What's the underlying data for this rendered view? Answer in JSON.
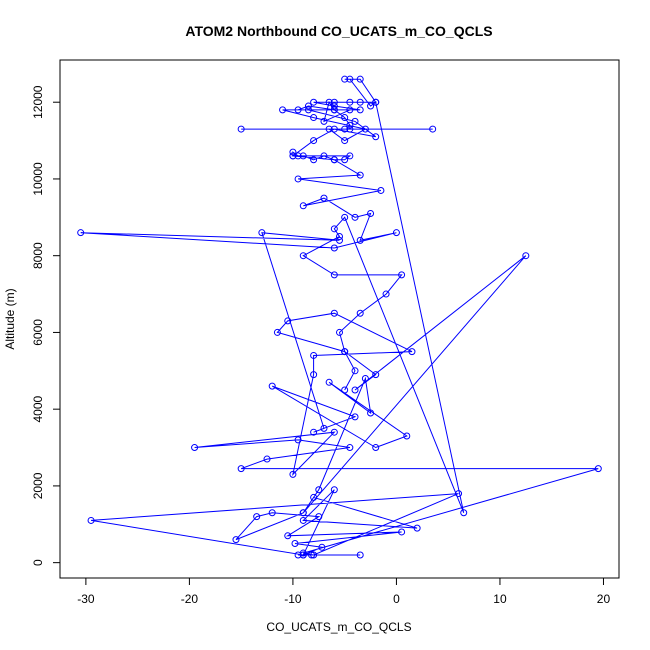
{
  "chart_data": {
    "type": "scatter",
    "title": "ATOM2 Northbound CO_UCATS_m_CO_QCLS",
    "xlabel": "CO_UCATS_m_CO_QCLS",
    "ylabel": "Altitude (m)",
    "xlim": [
      -32.5,
      21.5
    ],
    "ylim": [
      -400,
      13100
    ],
    "x_ticks": [
      -30,
      -20,
      -10,
      0,
      10,
      20
    ],
    "y_ticks": [
      0,
      2000,
      4000,
      6000,
      8000,
      10000,
      12000
    ],
    "grid": false,
    "legend": "none",
    "series": [
      {
        "color": "#0000ff",
        "marker": "open-circle",
        "connected": true,
        "x": [
          -9.5,
          -8.2,
          -3.5,
          -9.0,
          -7.2,
          -9.8,
          0.5,
          -10.5,
          -7.5,
          -12.0,
          -13.5,
          -15.5,
          -9.0,
          -8.0,
          2.0,
          -9.0,
          -6.0,
          -9.0,
          -29.5,
          6.0,
          -8.0,
          -9.0,
          19.5,
          -15.0,
          -12.5,
          -4.5,
          -9.5,
          -19.5,
          -6.0,
          -10.0,
          -8.0,
          -8.0,
          1.5,
          -6.0,
          -10.5,
          -11.5,
          -5.0,
          -2.0,
          -4.0,
          12.5,
          -9.0,
          -7.5,
          -3.0,
          -2.5,
          -6.5,
          1.0,
          -2.0,
          -12.0,
          -4.0,
          -8.0,
          -7.0,
          -13.0,
          -5.5,
          -30.5,
          -6.0,
          0.0,
          -3.5,
          -2.5,
          -4.0,
          -7.0,
          -9.0,
          -1.5,
          -9.5,
          -3.5,
          -6.0,
          -10.0,
          -10.0,
          -9.5,
          -9.0,
          -8.0,
          -7.0,
          -6.0,
          -5.0,
          -4.5,
          -10.0,
          -8.0,
          -6.0,
          -2.0,
          -4.0,
          -8.5,
          -4.5,
          -7.0,
          -6.5,
          -6.0,
          -9.5,
          -8.5,
          -6.0,
          -5.0,
          -4.5,
          -4.5,
          3.5,
          -5.0,
          -15.0,
          -6.5,
          -5.0,
          -3.0,
          -8.0,
          -11.0,
          -3.5,
          -6.0,
          -8.0,
          -3.5,
          -6.0,
          -4.5,
          -2.0,
          -2.5,
          -4.5,
          -5.0,
          -3.5,
          -2.0,
          6.5,
          -5.0,
          -6.0,
          -5.5,
          -9.0,
          -6.0,
          0.5,
          -1.0,
          -3.5,
          -5.5,
          -5.0,
          -4.0,
          -5.0
        ],
        "y": [
          200,
          200,
          200,
          200,
          400,
          500,
          800,
          700,
          1200,
          1300,
          1200,
          600,
          1300,
          1700,
          900,
          1100,
          1900,
          200,
          1100,
          1800,
          200,
          250,
          2450,
          2450,
          2700,
          3000,
          3200,
          3000,
          3400,
          2300,
          4900,
          5400,
          5500,
          6500,
          6300,
          6000,
          5500,
          4900,
          4500,
          8000,
          1300,
          1900,
          4800,
          3900,
          4700,
          3300,
          3000,
          4600,
          3800,
          3400,
          3500,
          8600,
          8400,
          8600,
          8200,
          8600,
          8400,
          9100,
          9000,
          9500,
          9300,
          9700,
          10000,
          10100,
          10500,
          10600,
          10700,
          10600,
          10600,
          10500,
          10600,
          10500,
          10500,
          10600,
          10600,
          11000,
          11300,
          11100,
          11500,
          11800,
          11800,
          11500,
          12000,
          11800,
          11800,
          11900,
          11800,
          11600,
          11400,
          11300,
          11300,
          11300,
          11300,
          11300,
          11000,
          11300,
          11600,
          11800,
          11800,
          11900,
          12000,
          12000,
          12000,
          12000,
          12000,
          11900,
          12600,
          12600,
          12600,
          12000,
          1300,
          9000,
          8700,
          8500,
          8000,
          7500,
          7500,
          7000,
          6500,
          6000,
          5500,
          5000,
          4500
        ]
      }
    ]
  }
}
